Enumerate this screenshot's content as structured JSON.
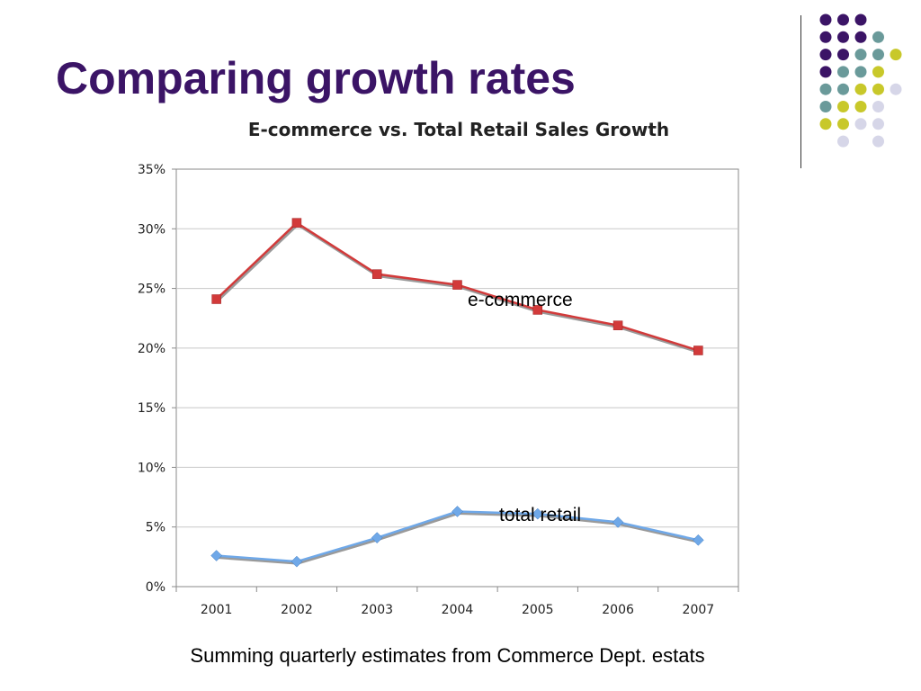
{
  "slide": {
    "title": "Comparing growth rates",
    "caption": "Summing quarterly estimates from Commerce Dept. estats"
  },
  "colors": {
    "title": "#3b1466",
    "ecommerce_line": "#d23a3a",
    "retail_line": "#6fa8e8",
    "dot_purple": "#3b1466",
    "dot_teal": "#6a9a9a",
    "dot_yellow": "#c8c82a",
    "dot_lavender": "#d6d6e8"
  },
  "chart_data": {
    "type": "line",
    "title": "E-commerce vs. Total Retail Sales Growth",
    "xlabel": "",
    "ylabel": "",
    "categories": [
      "2001",
      "2002",
      "2003",
      "2004",
      "2005",
      "2006",
      "2007"
    ],
    "y_ticks": [
      "0%",
      "5%",
      "10%",
      "15%",
      "20%",
      "25%",
      "30%",
      "35%"
    ],
    "ylim": [
      0,
      35
    ],
    "grid": true,
    "legend": "none",
    "series": [
      {
        "name": "e-commerce",
        "marker": "square",
        "values": [
          24.1,
          30.5,
          26.2,
          25.3,
          23.2,
          21.9,
          19.8
        ]
      },
      {
        "name": "total retail",
        "marker": "diamond",
        "values": [
          2.6,
          2.1,
          4.1,
          6.3,
          6.1,
          5.4,
          3.9
        ]
      }
    ]
  }
}
